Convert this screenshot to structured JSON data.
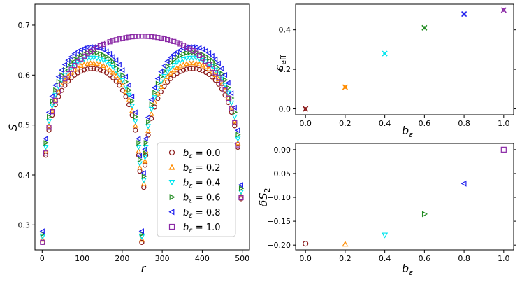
{
  "chart_data": [
    {
      "id": "S_vs_r",
      "type": "scatter",
      "xlabel": "r",
      "ylabel": "S",
      "xlim": [
        -18,
        518
      ],
      "ylim": [
        0.25,
        0.742
      ],
      "xticks": [
        0,
        100,
        200,
        300,
        400,
        500
      ],
      "yticks": [
        0.3,
        0.4,
        0.5,
        0.6,
        0.7
      ],
      "ytick_labels": [
        "0.3",
        "0.4",
        "0.5",
        "0.6",
        "0.7"
      ],
      "legend_position": "lower-right",
      "N": 500,
      "step": 8,
      "series": [
        {
          "name": "b_ε = 0.0",
          "legend_label": "0.0",
          "b": 0.0,
          "color": "#8b1a1a",
          "marker": "circle",
          "mode": "broken"
        },
        {
          "name": "b_ε = 0.2",
          "legend_label": "0.2",
          "b": 0.2,
          "color": "#ff8c00",
          "marker": "triangle-up",
          "mode": "broken"
        },
        {
          "name": "b_ε = 0.4",
          "legend_label": "0.4",
          "b": 0.4,
          "color": "#00e5ee",
          "marker": "triangle-down",
          "mode": "broken"
        },
        {
          "name": "b_ε = 0.6",
          "legend_label": "0.6",
          "b": 0.6,
          "color": "#228b22",
          "marker": "triangle-right",
          "mode": "broken"
        },
        {
          "name": "b_ε = 0.8",
          "legend_label": "0.8",
          "b": 0.8,
          "color": "#1f1fee",
          "marker": "triangle-left",
          "mode": "broken"
        },
        {
          "name": "b_ε = 1.0",
          "legend_label": "1.0",
          "b": 1.0,
          "color": "#8b2aa6",
          "marker": "square",
          "mode": "smooth"
        }
      ]
    },
    {
      "id": "ceff_vs_b",
      "type": "scatter",
      "xlabel": "b_ε",
      "ylabel": "c_eff",
      "xlim": [
        -0.05,
        1.05
      ],
      "ylim": [
        -0.03,
        0.53
      ],
      "xticks": [
        0.0,
        0.2,
        0.4,
        0.6,
        0.8,
        1.0
      ],
      "xtick_labels": [
        "0.0",
        "0.2",
        "0.4",
        "0.6",
        "0.8",
        "1.0"
      ],
      "yticks": [
        0.0,
        0.2,
        0.4
      ],
      "ytick_labels": [
        "0.0",
        "0.2",
        "0.4"
      ],
      "points": [
        {
          "x": 0.0,
          "y": 0.0,
          "color": "#8b1a1a",
          "marker": "x-circle"
        },
        {
          "x": 0.2,
          "y": 0.11,
          "color": "#ff8c00",
          "marker": "x-circle"
        },
        {
          "x": 0.4,
          "y": 0.28,
          "color": "#00e5ee",
          "marker": "x-circle"
        },
        {
          "x": 0.6,
          "y": 0.41,
          "color": "#228b22",
          "marker": "x-circle"
        },
        {
          "x": 0.8,
          "y": 0.48,
          "color": "#1f1fee",
          "marker": "x-circle"
        },
        {
          "x": 1.0,
          "y": 0.5,
          "color": "#8b2aa6",
          "marker": "x-circle"
        }
      ]
    },
    {
      "id": "deltaS2_vs_b",
      "type": "scatter",
      "xlabel": "b_ε",
      "ylabel": "δS_2",
      "xlim": [
        -0.05,
        1.05
      ],
      "ylim": [
        -0.21,
        0.013
      ],
      "xticks": [
        0.0,
        0.2,
        0.4,
        0.6,
        0.8,
        1.0
      ],
      "xtick_labels": [
        "0.0",
        "0.2",
        "0.4",
        "0.6",
        "0.8",
        "1.0"
      ],
      "yticks": [
        -0.2,
        -0.15,
        -0.1,
        -0.05,
        0.0
      ],
      "ytick_labels": [
        "−0.20",
        "−0.15",
        "−0.10",
        "−0.05",
        "0.00"
      ],
      "points": [
        {
          "x": 0.0,
          "y": -0.197,
          "color": "#8b1a1a",
          "marker": "circle"
        },
        {
          "x": 0.2,
          "y": -0.198,
          "color": "#ff8c00",
          "marker": "triangle-up"
        },
        {
          "x": 0.4,
          "y": -0.179,
          "color": "#00e5ee",
          "marker": "triangle-down"
        },
        {
          "x": 0.6,
          "y": -0.135,
          "color": "#228b22",
          "marker": "triangle-right"
        },
        {
          "x": 0.8,
          "y": -0.071,
          "color": "#1f1fee",
          "marker": "triangle-left"
        },
        {
          "x": 1.0,
          "y": 0.0,
          "color": "#8b2aa6",
          "marker": "square"
        }
      ]
    }
  ],
  "legend_prefix": "b",
  "legend_sub": "ε",
  "legend_eq": " = "
}
